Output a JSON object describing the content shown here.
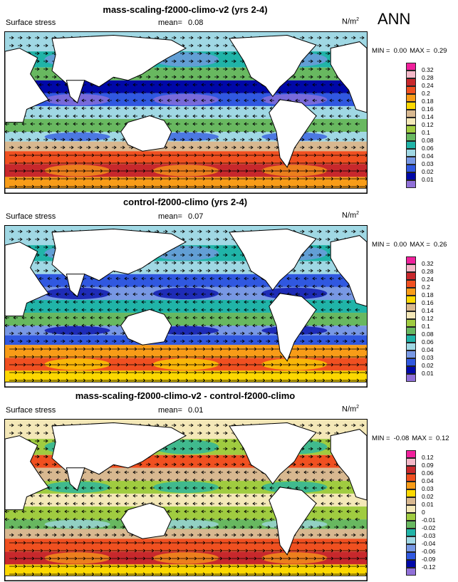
{
  "season": "ANN",
  "panels": [
    {
      "title": "mass-scaling-f2000-climo-v2 (yrs 2-4)",
      "variable": "Surface stress",
      "mean_label": "mean=",
      "mean_value": "0.08",
      "units_base": "N/m",
      "units_exp": "2",
      "min_label": "MIN =",
      "min_value": "0.00",
      "max_label": "MAX =",
      "max_value": "0.29",
      "levels": [
        "0.32",
        "0.28",
        "0.24",
        "0.2",
        "0.18",
        "0.16",
        "0.14",
        "0.12",
        "0.1",
        "0.08",
        "0.06",
        "0.04",
        "0.03",
        "0.02",
        "0.01"
      ],
      "colors": [
        "#f0209c",
        "#f4b8c8",
        "#c8282c",
        "#f05020",
        "#f89c18",
        "#fcd800",
        "#d8b890",
        "#f4e8b8",
        "#a0cc40",
        "#68b860",
        "#20b4a8",
        "#a0d8e4",
        "#7898e4",
        "#3058e0",
        "#0008a8",
        "#9070d8"
      ]
    },
    {
      "title": "control-f2000-climo (yrs 2-4)",
      "variable": "Surface stress",
      "mean_label": "mean=",
      "mean_value": "0.07",
      "units_base": "N/m",
      "units_exp": "2",
      "min_label": "MIN =",
      "min_value": "0.00",
      "max_label": "MAX =",
      "max_value": "0.26",
      "levels": [
        "0.32",
        "0.28",
        "0.24",
        "0.2",
        "0.18",
        "0.16",
        "0.14",
        "0.12",
        "0.1",
        "0.08",
        "0.06",
        "0.04",
        "0.03",
        "0.02",
        "0.01"
      ],
      "colors": [
        "#f0209c",
        "#f4b8c8",
        "#c8282c",
        "#f05020",
        "#f89c18",
        "#fcd800",
        "#d8b890",
        "#f4e8b8",
        "#a0cc40",
        "#68b860",
        "#20b4a8",
        "#a0d8e4",
        "#7898e4",
        "#3058e0",
        "#0008a8",
        "#9070d8"
      ]
    },
    {
      "title": "mass-scaling-f2000-climo-v2 - control-f2000-climo",
      "variable": "Surface stress",
      "mean_label": "mean=",
      "mean_value": "0.01",
      "units_base": "N/m",
      "units_exp": "2",
      "min_label": "MIN =",
      "min_value": "-0.08",
      "max_label": "MAX =",
      "max_value": "0.12",
      "levels": [
        "0.12",
        "0.09",
        "0.06",
        "0.04",
        "0.03",
        "0.02",
        "0.01",
        "0",
        "-0.01",
        "-0.02",
        "-0.03",
        "-0.04",
        "-0.06",
        "-0.09",
        "-0.12"
      ],
      "colors": [
        "#f0209c",
        "#f4b8c8",
        "#c8282c",
        "#f05020",
        "#f89c18",
        "#fcd800",
        "#d8b890",
        "#f4e8b8",
        "#a0cc40",
        "#68b860",
        "#20b4a8",
        "#a0d8e4",
        "#7898e4",
        "#3058e0",
        "#0008a8",
        "#9070d8"
      ]
    }
  ],
  "chart_data": [
    {
      "type": "heatmap",
      "title": "mass-scaling-f2000-climo-v2 (yrs 2-4)",
      "field": "Surface stress",
      "units": "N/m2",
      "mean": 0.08,
      "min": 0.0,
      "max": 0.29,
      "contour_levels": [
        0.01,
        0.02,
        0.03,
        0.04,
        0.06,
        0.08,
        0.1,
        0.12,
        0.14,
        0.16,
        0.18,
        0.2,
        0.24,
        0.28,
        0.32
      ],
      "overlay": "wind-stress vectors"
    },
    {
      "type": "heatmap",
      "title": "control-f2000-climo (yrs 2-4)",
      "field": "Surface stress",
      "units": "N/m2",
      "mean": 0.07,
      "min": 0.0,
      "max": 0.26,
      "contour_levels": [
        0.01,
        0.02,
        0.03,
        0.04,
        0.06,
        0.08,
        0.1,
        0.12,
        0.14,
        0.16,
        0.18,
        0.2,
        0.24,
        0.28,
        0.32
      ],
      "overlay": "wind-stress vectors"
    },
    {
      "type": "heatmap",
      "title": "mass-scaling-f2000-climo-v2 - control-f2000-climo",
      "field": "Surface stress",
      "units": "N/m2",
      "mean": 0.01,
      "min": -0.08,
      "max": 0.12,
      "contour_levels": [
        -0.12,
        -0.09,
        -0.06,
        -0.04,
        -0.03,
        -0.02,
        -0.01,
        0,
        0.01,
        0.02,
        0.03,
        0.04,
        0.06,
        0.09,
        0.12
      ],
      "overlay": "wind-stress difference vectors"
    }
  ]
}
